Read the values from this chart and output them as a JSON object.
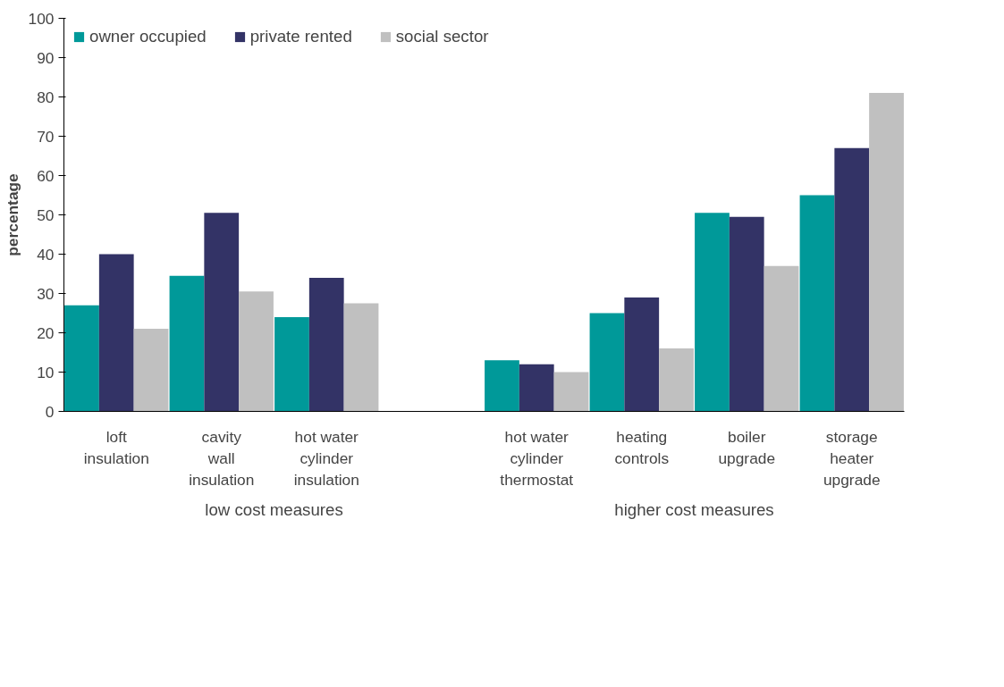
{
  "chart_data": {
    "type": "bar",
    "ylabel": "percentage",
    "categories": [
      "loft\ninsulation",
      "cavity\nwall\ninsulation",
      "hot water\ncylinder\ninsulation",
      null,
      "hot water\ncylinder\nthermostat",
      "heating\ncontrols",
      "boiler\nupgrade",
      "storage\nheater\nupgrade"
    ],
    "series": [
      {
        "name": "owner occupied",
        "color": "#009999",
        "values": [
          27,
          34.5,
          24,
          null,
          13,
          25,
          50.5,
          55
        ]
      },
      {
        "name": "private rented",
        "color": "#333366",
        "values": [
          40,
          50.5,
          34,
          null,
          12,
          29,
          49.5,
          67
        ]
      },
      {
        "name": "social sector",
        "color": "#c0c0c0",
        "values": [
          21,
          30.5,
          27.5,
          null,
          10,
          16,
          37,
          81
        ]
      }
    ],
    "annotations": [
      "low cost measures",
      "higher cost measures"
    ],
    "ylim": [
      0,
      100
    ],
    "yticks": [
      0,
      10,
      20,
      30,
      40,
      50,
      60,
      70,
      80,
      90,
      100
    ],
    "grid": false,
    "legend": "top left"
  }
}
